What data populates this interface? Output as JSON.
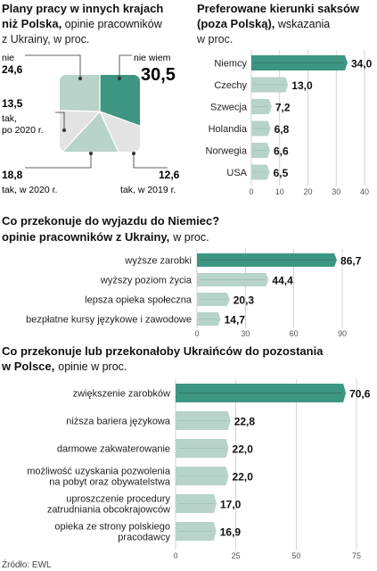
{
  "accent": "#3d9681",
  "light": "#b8d3c9",
  "chart_data": [
    {
      "type": "pie",
      "title": "Plany pracy w innych krajach niż Polska,",
      "subtitle": "opinie pracowników z Ukrainy, w proc.",
      "slices": [
        {
          "label": "nie wiem",
          "value": 30.5,
          "display": "30,5",
          "color": "#3d9681"
        },
        {
          "label": "tak, w 2019 r.",
          "value": 12.6,
          "display": "12,6",
          "color": "#e3e3e3"
        },
        {
          "label": "tak, w 2020 r.",
          "value": 18.8,
          "display": "18,8",
          "color": "#b8d3c9"
        },
        {
          "label": "tak, po 2020 r.",
          "value": 13.5,
          "display": "13,5",
          "color": "#e3e3e3"
        },
        {
          "label": "nie",
          "value": 24.6,
          "display": "24,6",
          "color": "#b8d3c9"
        }
      ]
    },
    {
      "type": "bar",
      "title": "Preferowane kierunki saksów (poza Polską),",
      "subtitle": "wskazania w proc.",
      "categories": [
        "Niemcy",
        "Czechy",
        "Szwecja",
        "Holandia",
        "Norwegia",
        "USA"
      ],
      "values": [
        34.0,
        13.0,
        7.2,
        6.8,
        6.6,
        6.5
      ],
      "value_labels": [
        "34,0",
        "13,0",
        "7,2",
        "6,8",
        "6,6",
        "6,5"
      ],
      "xlim": [
        0,
        40
      ],
      "ticks": [
        "0",
        "10",
        "20",
        "30",
        "40"
      ]
    },
    {
      "type": "bar",
      "title": "Co przekonuje do wyjazdu do Niemiec?",
      "subtitle": "opinie pracowników z Ukrainy,",
      "unit": "w proc.",
      "categories": [
        "wyższe zarobki",
        "wyższy poziom życia",
        "lepsza opieka społeczna",
        "bezpłatne kursy językowe i zawodowe"
      ],
      "values": [
        86.7,
        44.4,
        20.3,
        14.7
      ],
      "value_labels": [
        "86,7",
        "44,4",
        "20,3",
        "14,7"
      ],
      "xlim": [
        0,
        90
      ],
      "ticks": [
        "0",
        "30",
        "60",
        "90"
      ]
    },
    {
      "type": "bar",
      "title": "Co przekonuje lub przekonałoby Ukraińców do pozostania",
      "title2": "w Polsce,",
      "subtitle": "opinie w proc.",
      "categories": [
        [
          "zwiększenie zarobków"
        ],
        [
          "niższa bariera językowa"
        ],
        [
          "darmowe zakwaterowanie"
        ],
        [
          "możliwość uzyskania pozwolenia",
          "na pobyt oraz obywatelstwa"
        ],
        [
          "uproszczenie procedury",
          "zatrudniania obcokrajowców"
        ],
        [
          "opieka ze strony polskiego",
          "pracodawcy"
        ]
      ],
      "values": [
        70.6,
        22.8,
        22.0,
        22.0,
        17.0,
        16.9
      ],
      "value_labels": [
        "70,6",
        "22,8",
        "22,0",
        "22,0",
        "17,0",
        "16,9"
      ],
      "xlim": [
        0,
        75
      ],
      "ticks": [
        "0",
        "25",
        "50",
        "75"
      ]
    }
  ],
  "source": "Źródło: EWL"
}
